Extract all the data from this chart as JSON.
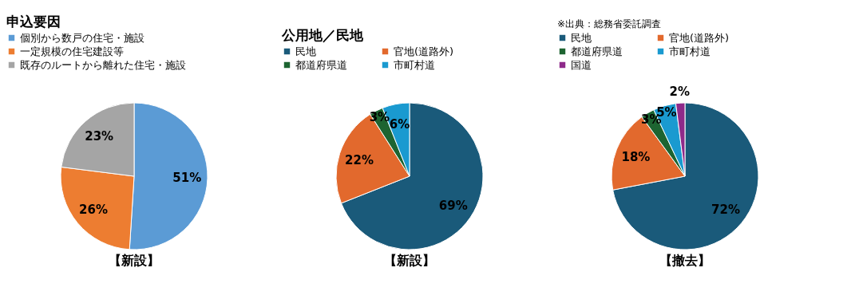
{
  "chart_data": [
    {
      "type": "pie",
      "title": "申込要因",
      "categories": [
        "個別から数戸の住宅・施設",
        "一定規模の住宅建設等",
        "既存のルートから離れた住宅・施設"
      ],
      "values": [
        51,
        26,
        23
      ],
      "colors": [
        "#5b9bd5",
        "#ed7d31",
        "#a5a5a5"
      ],
      "value_labels": [
        "51%",
        "26%",
        "23%"
      ],
      "legend": "top left",
      "annotations": [
        "【新設】"
      ]
    },
    {
      "type": "pie",
      "title": "公用地／民地",
      "categories": [
        "民地",
        "官地(道路外)",
        "都道府県道",
        "市町村道"
      ],
      "values": [
        69,
        22,
        3,
        6
      ],
      "colors": [
        "#1a5a7a",
        "#e2692d",
        "#1d6431",
        "#1a9ad0"
      ],
      "value_labels": [
        "69%",
        "22%",
        "3%",
        "6%"
      ],
      "legend": "top left",
      "annotations": [
        "【新設】"
      ]
    },
    {
      "type": "pie",
      "subtitle": "※出典：総務省委託調査",
      "categories": [
        "民地",
        "官地(道路外)",
        "都道府県道",
        "市町村道",
        "国道"
      ],
      "values": [
        72,
        18,
        3,
        5,
        2
      ],
      "colors": [
        "#1a5a7a",
        "#e2692d",
        "#1d6431",
        "#1a9ad0",
        "#8e2a8a"
      ],
      "value_labels": [
        "72%",
        "18%",
        "3%",
        "5%",
        "2%"
      ],
      "legend": "top left",
      "annotations": [
        "【撤去】"
      ]
    }
  ]
}
